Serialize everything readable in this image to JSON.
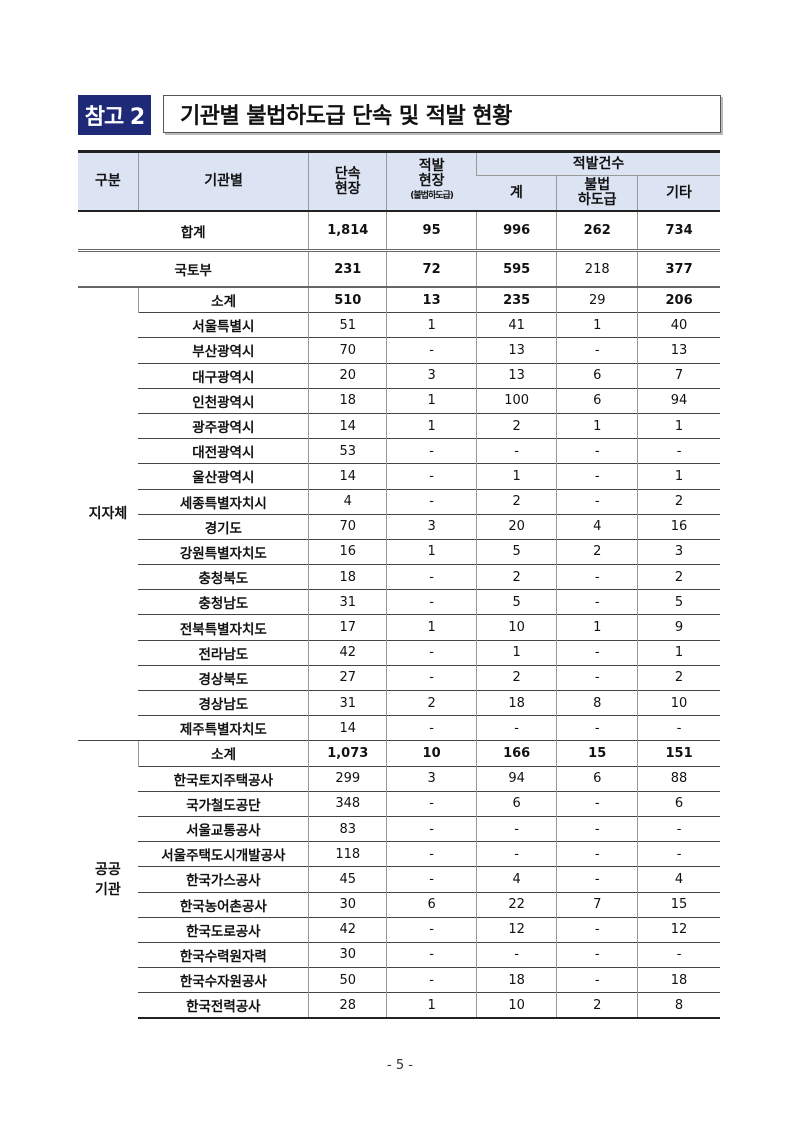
{
  "badge": "참고 2",
  "title": "기관별 불법하도급 단속 및 적발 현황",
  "headers": {
    "category": "구분",
    "agency": "기관별",
    "inspected": "단속\n현장",
    "detected_sites": "적발\n현장",
    "detected_sites_note": "(불법하도급)",
    "detection_count": "적발건수",
    "total": "계",
    "illegal_subcontract": "불법\n하도급",
    "other": "기타"
  },
  "grand_total": {
    "label": "합계",
    "values": [
      "1,814",
      "95",
      "996",
      "262",
      "734"
    ]
  },
  "ministry": {
    "label": "국토부",
    "values": [
      "231",
      "72",
      "595",
      "218",
      "377"
    ]
  },
  "groups": [
    {
      "label": "지자체",
      "rows": [
        [
          "소계",
          "510",
          "13",
          "235",
          "29",
          "206"
        ],
        [
          "서울특별시",
          "51",
          "1",
          "41",
          "1",
          "40"
        ],
        [
          "부산광역시",
          "70",
          "-",
          "13",
          "-",
          "13"
        ],
        [
          "대구광역시",
          "20",
          "3",
          "13",
          "6",
          "7"
        ],
        [
          "인천광역시",
          "18",
          "1",
          "100",
          "6",
          "94"
        ],
        [
          "광주광역시",
          "14",
          "1",
          "2",
          "1",
          "1"
        ],
        [
          "대전광역시",
          "53",
          "-",
          "-",
          "-",
          "-"
        ],
        [
          "울산광역시",
          "14",
          "-",
          "1",
          "-",
          "1"
        ],
        [
          "세종특별자치시",
          "4",
          "-",
          "2",
          "-",
          "2"
        ],
        [
          "경기도",
          "70",
          "3",
          "20",
          "4",
          "16"
        ],
        [
          "강원특별자치도",
          "16",
          "1",
          "5",
          "2",
          "3"
        ],
        [
          "충청북도",
          "18",
          "-",
          "2",
          "-",
          "2"
        ],
        [
          "충청남도",
          "31",
          "-",
          "5",
          "-",
          "5"
        ],
        [
          "전북특별자치도",
          "17",
          "1",
          "10",
          "1",
          "9"
        ],
        [
          "전라남도",
          "42",
          "-",
          "1",
          "-",
          "1"
        ],
        [
          "경상북도",
          "27",
          "-",
          "2",
          "-",
          "2"
        ],
        [
          "경상남도",
          "31",
          "2",
          "18",
          "8",
          "10"
        ],
        [
          "제주특별자치도",
          "14",
          "-",
          "-",
          "-",
          "-"
        ]
      ]
    },
    {
      "label": "공공\n기관",
      "rows": [
        [
          "소계",
          "1,073",
          "10",
          "166",
          "15",
          "151"
        ],
        [
          "한국토지주택공사",
          "299",
          "3",
          "94",
          "6",
          "88"
        ],
        [
          "국가철도공단",
          "348",
          "-",
          "6",
          "-",
          "6"
        ],
        [
          "서울교통공사",
          "83",
          "-",
          "-",
          "-",
          "-"
        ],
        [
          "서울주택도시개발공사",
          "118",
          "-",
          "-",
          "-",
          "-"
        ],
        [
          "한국가스공사",
          "45",
          "-",
          "4",
          "-",
          "4"
        ],
        [
          "한국농어촌공사",
          "30",
          "6",
          "22",
          "7",
          "15"
        ],
        [
          "한국도로공사",
          "42",
          "-",
          "12",
          "-",
          "12"
        ],
        [
          "한국수력원자력",
          "30",
          "-",
          "-",
          "-",
          "-"
        ],
        [
          "한국수자원공사",
          "50",
          "-",
          "18",
          "-",
          "18"
        ],
        [
          "한국전력공사",
          "28",
          "1",
          "10",
          "2",
          "8"
        ]
      ]
    }
  ],
  "page_number": "- 5 -",
  "colors": {
    "badge": "#1e2a78",
    "header_bg": "#dce4f3"
  }
}
